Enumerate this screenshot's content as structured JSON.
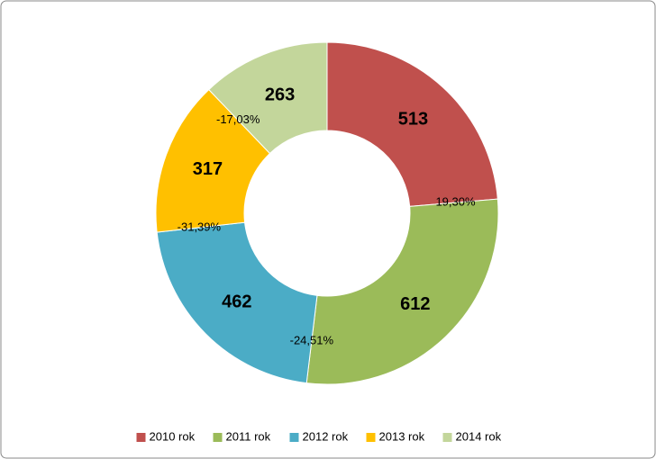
{
  "chart_data": {
    "type": "doughnut",
    "categories": [
      "2010 rok",
      "2011 rok",
      "2012 rok",
      "2013 rok",
      "2014 rok"
    ],
    "values": [
      513,
      612,
      462,
      317,
      263
    ],
    "colors": [
      "#c0504d",
      "#9bbb59",
      "#4bacc6",
      "#ffc000",
      "#c3d69b"
    ],
    "annotations": [
      "19,30%",
      "-24,51%",
      "-31,39%",
      "-17,03%"
    ],
    "legend": "bottom"
  }
}
